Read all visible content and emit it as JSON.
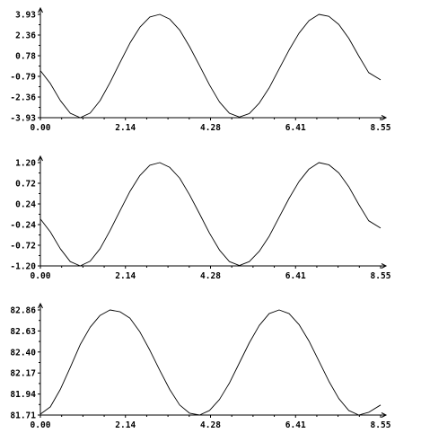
{
  "chart_data": [
    {
      "type": "line",
      "title": "",
      "xlabel": "",
      "ylabel": "",
      "xlim": [
        0.0,
        8.55
      ],
      "ylim": [
        -3.93,
        3.93
      ],
      "x_ticks": [
        "0.00",
        "2.14",
        "4.28",
        "6.41",
        "8.55"
      ],
      "y_ticks": [
        "3.93",
        "2.36",
        "0.78",
        "-0.79",
        "-2.36",
        "-3.93"
      ],
      "grid": false,
      "series": [
        {
          "x": [
            0.0,
            0.25,
            0.5,
            0.75,
            1.0,
            1.25,
            1.5,
            1.75,
            2.0,
            2.25,
            2.5,
            2.75,
            3.0,
            3.25,
            3.5,
            3.75,
            4.0,
            4.25,
            4.5,
            4.75,
            5.0,
            5.25,
            5.5,
            5.75,
            6.0,
            6.25,
            6.5,
            6.75,
            7.0,
            7.25,
            7.5,
            7.75,
            8.0,
            8.25,
            8.55
          ],
          "y": [
            -0.35,
            -1.33,
            -2.62,
            -3.59,
            -3.93,
            -3.58,
            -2.63,
            -1.26,
            0.26,
            1.74,
            2.95,
            3.73,
            3.93,
            3.57,
            2.74,
            1.47,
            0.03,
            -1.44,
            -2.73,
            -3.59,
            -3.88,
            -3.62,
            -2.82,
            -1.66,
            -0.22,
            1.22,
            2.5,
            3.45,
            3.93,
            3.78,
            3.16,
            2.11,
            0.77,
            -0.5,
            -1.05
          ]
        }
      ]
    },
    {
      "type": "line",
      "title": "",
      "xlabel": "",
      "ylabel": "",
      "xlim": [
        0.0,
        8.55
      ],
      "ylim": [
        -1.2,
        1.2
      ],
      "x_ticks": [
        "0.00",
        "2.14",
        "4.28",
        "6.41",
        "8.55"
      ],
      "y_ticks": [
        "1.20",
        "0.72",
        "0.24",
        "-0.24",
        "-0.72",
        "-1.20"
      ],
      "grid": false,
      "series": [
        {
          "x": [
            0.0,
            0.25,
            0.5,
            0.75,
            1.0,
            1.25,
            1.5,
            1.75,
            2.0,
            2.25,
            2.5,
            2.75,
            3.0,
            3.25,
            3.5,
            3.75,
            4.0,
            4.25,
            4.5,
            4.75,
            5.0,
            5.25,
            5.5,
            5.75,
            6.0,
            6.25,
            6.5,
            6.75,
            7.0,
            7.25,
            7.5,
            7.75,
            8.0,
            8.25,
            8.55
          ],
          "y": [
            -0.11,
            -0.41,
            -0.8,
            -1.1,
            -1.2,
            -1.09,
            -0.8,
            -0.38,
            0.08,
            0.53,
            0.9,
            1.14,
            1.2,
            1.09,
            0.84,
            0.45,
            0.01,
            -0.44,
            -0.83,
            -1.1,
            -1.19,
            -1.1,
            -0.86,
            -0.51,
            -0.07,
            0.37,
            0.76,
            1.05,
            1.2,
            1.15,
            0.96,
            0.64,
            0.23,
            -0.15,
            -0.32
          ]
        }
      ]
    },
    {
      "type": "line",
      "title": "",
      "xlabel": "",
      "ylabel": "",
      "xlim": [
        0.0,
        8.55
      ],
      "ylim": [
        81.71,
        82.86
      ],
      "x_ticks": [
        "0.00",
        "2.14",
        "4.28",
        "6.41",
        "8.55"
      ],
      "y_ticks": [
        "82.86",
        "82.63",
        "82.40",
        "82.17",
        "81.94",
        "81.71"
      ],
      "grid": false,
      "series": [
        {
          "x": [
            0.0,
            0.25,
            0.5,
            0.75,
            1.0,
            1.25,
            1.5,
            1.75,
            2.0,
            2.25,
            2.5,
            2.75,
            3.0,
            3.25,
            3.5,
            3.75,
            4.0,
            4.25,
            4.5,
            4.75,
            5.0,
            5.25,
            5.5,
            5.75,
            6.0,
            6.25,
            6.5,
            6.75,
            7.0,
            7.25,
            7.5,
            7.75,
            8.0,
            8.25,
            8.55
          ],
          "y": [
            81.72,
            81.8,
            81.99,
            82.23,
            82.48,
            82.67,
            82.8,
            82.86,
            82.84,
            82.77,
            82.62,
            82.42,
            82.2,
            81.99,
            81.82,
            81.73,
            81.71,
            81.76,
            81.88,
            82.06,
            82.28,
            82.5,
            82.69,
            82.82,
            82.86,
            82.82,
            82.7,
            82.52,
            82.3,
            82.08,
            81.89,
            81.76,
            81.71,
            81.74,
            81.82
          ]
        }
      ]
    }
  ]
}
